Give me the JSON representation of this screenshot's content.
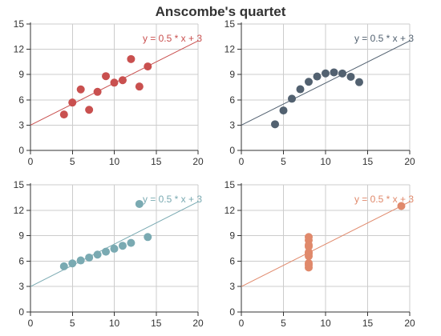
{
  "chart_data": {
    "type": "scatter",
    "title": "Anscombe's quartet",
    "xlim": [
      0,
      20
    ],
    "ylim": [
      0,
      15
    ],
    "xticks": [
      "0",
      "5",
      "10",
      "15",
      "20"
    ],
    "yticks": [
      "0",
      "3",
      "6",
      "9",
      "12",
      "15"
    ],
    "grid": true,
    "regression": {
      "slope": 0.5,
      "intercept": 3
    },
    "annotation": "y = 0.5 * x + 3",
    "panels": [
      {
        "color": "#c9504f",
        "points": [
          {
            "x": 10,
            "y": 8.04
          },
          {
            "x": 8,
            "y": 6.95
          },
          {
            "x": 13,
            "y": 7.58
          },
          {
            "x": 9,
            "y": 8.81
          },
          {
            "x": 11,
            "y": 8.33
          },
          {
            "x": 14,
            "y": 9.96
          },
          {
            "x": 6,
            "y": 7.24
          },
          {
            "x": 4,
            "y": 4.26
          },
          {
            "x": 12,
            "y": 10.84
          },
          {
            "x": 7,
            "y": 4.82
          },
          {
            "x": 5,
            "y": 5.68
          }
        ]
      },
      {
        "color": "#526170",
        "points": [
          {
            "x": 10,
            "y": 9.14
          },
          {
            "x": 8,
            "y": 8.14
          },
          {
            "x": 13,
            "y": 8.74
          },
          {
            "x": 9,
            "y": 8.77
          },
          {
            "x": 11,
            "y": 9.26
          },
          {
            "x": 14,
            "y": 8.1
          },
          {
            "x": 6,
            "y": 6.13
          },
          {
            "x": 4,
            "y": 3.1
          },
          {
            "x": 12,
            "y": 9.13
          },
          {
            "x": 7,
            "y": 7.26
          },
          {
            "x": 5,
            "y": 4.74
          }
        ]
      },
      {
        "color": "#7aaab2",
        "points": [
          {
            "x": 10,
            "y": 7.46
          },
          {
            "x": 8,
            "y": 6.77
          },
          {
            "x": 13,
            "y": 12.74
          },
          {
            "x": 9,
            "y": 7.11
          },
          {
            "x": 11,
            "y": 7.81
          },
          {
            "x": 14,
            "y": 8.84
          },
          {
            "x": 6,
            "y": 6.08
          },
          {
            "x": 4,
            "y": 5.39
          },
          {
            "x": 12,
            "y": 8.15
          },
          {
            "x": 7,
            "y": 6.42
          },
          {
            "x": 5,
            "y": 5.73
          }
        ]
      },
      {
        "color": "#e0896b",
        "points": [
          {
            "x": 8,
            "y": 6.58
          },
          {
            "x": 8,
            "y": 5.76
          },
          {
            "x": 8,
            "y": 7.71
          },
          {
            "x": 8,
            "y": 8.84
          },
          {
            "x": 8,
            "y": 8.47
          },
          {
            "x": 8,
            "y": 7.04
          },
          {
            "x": 8,
            "y": 5.25
          },
          {
            "x": 19,
            "y": 12.5
          },
          {
            "x": 8,
            "y": 5.56
          },
          {
            "x": 8,
            "y": 7.91
          },
          {
            "x": 8,
            "y": 6.89
          }
        ]
      }
    ]
  }
}
